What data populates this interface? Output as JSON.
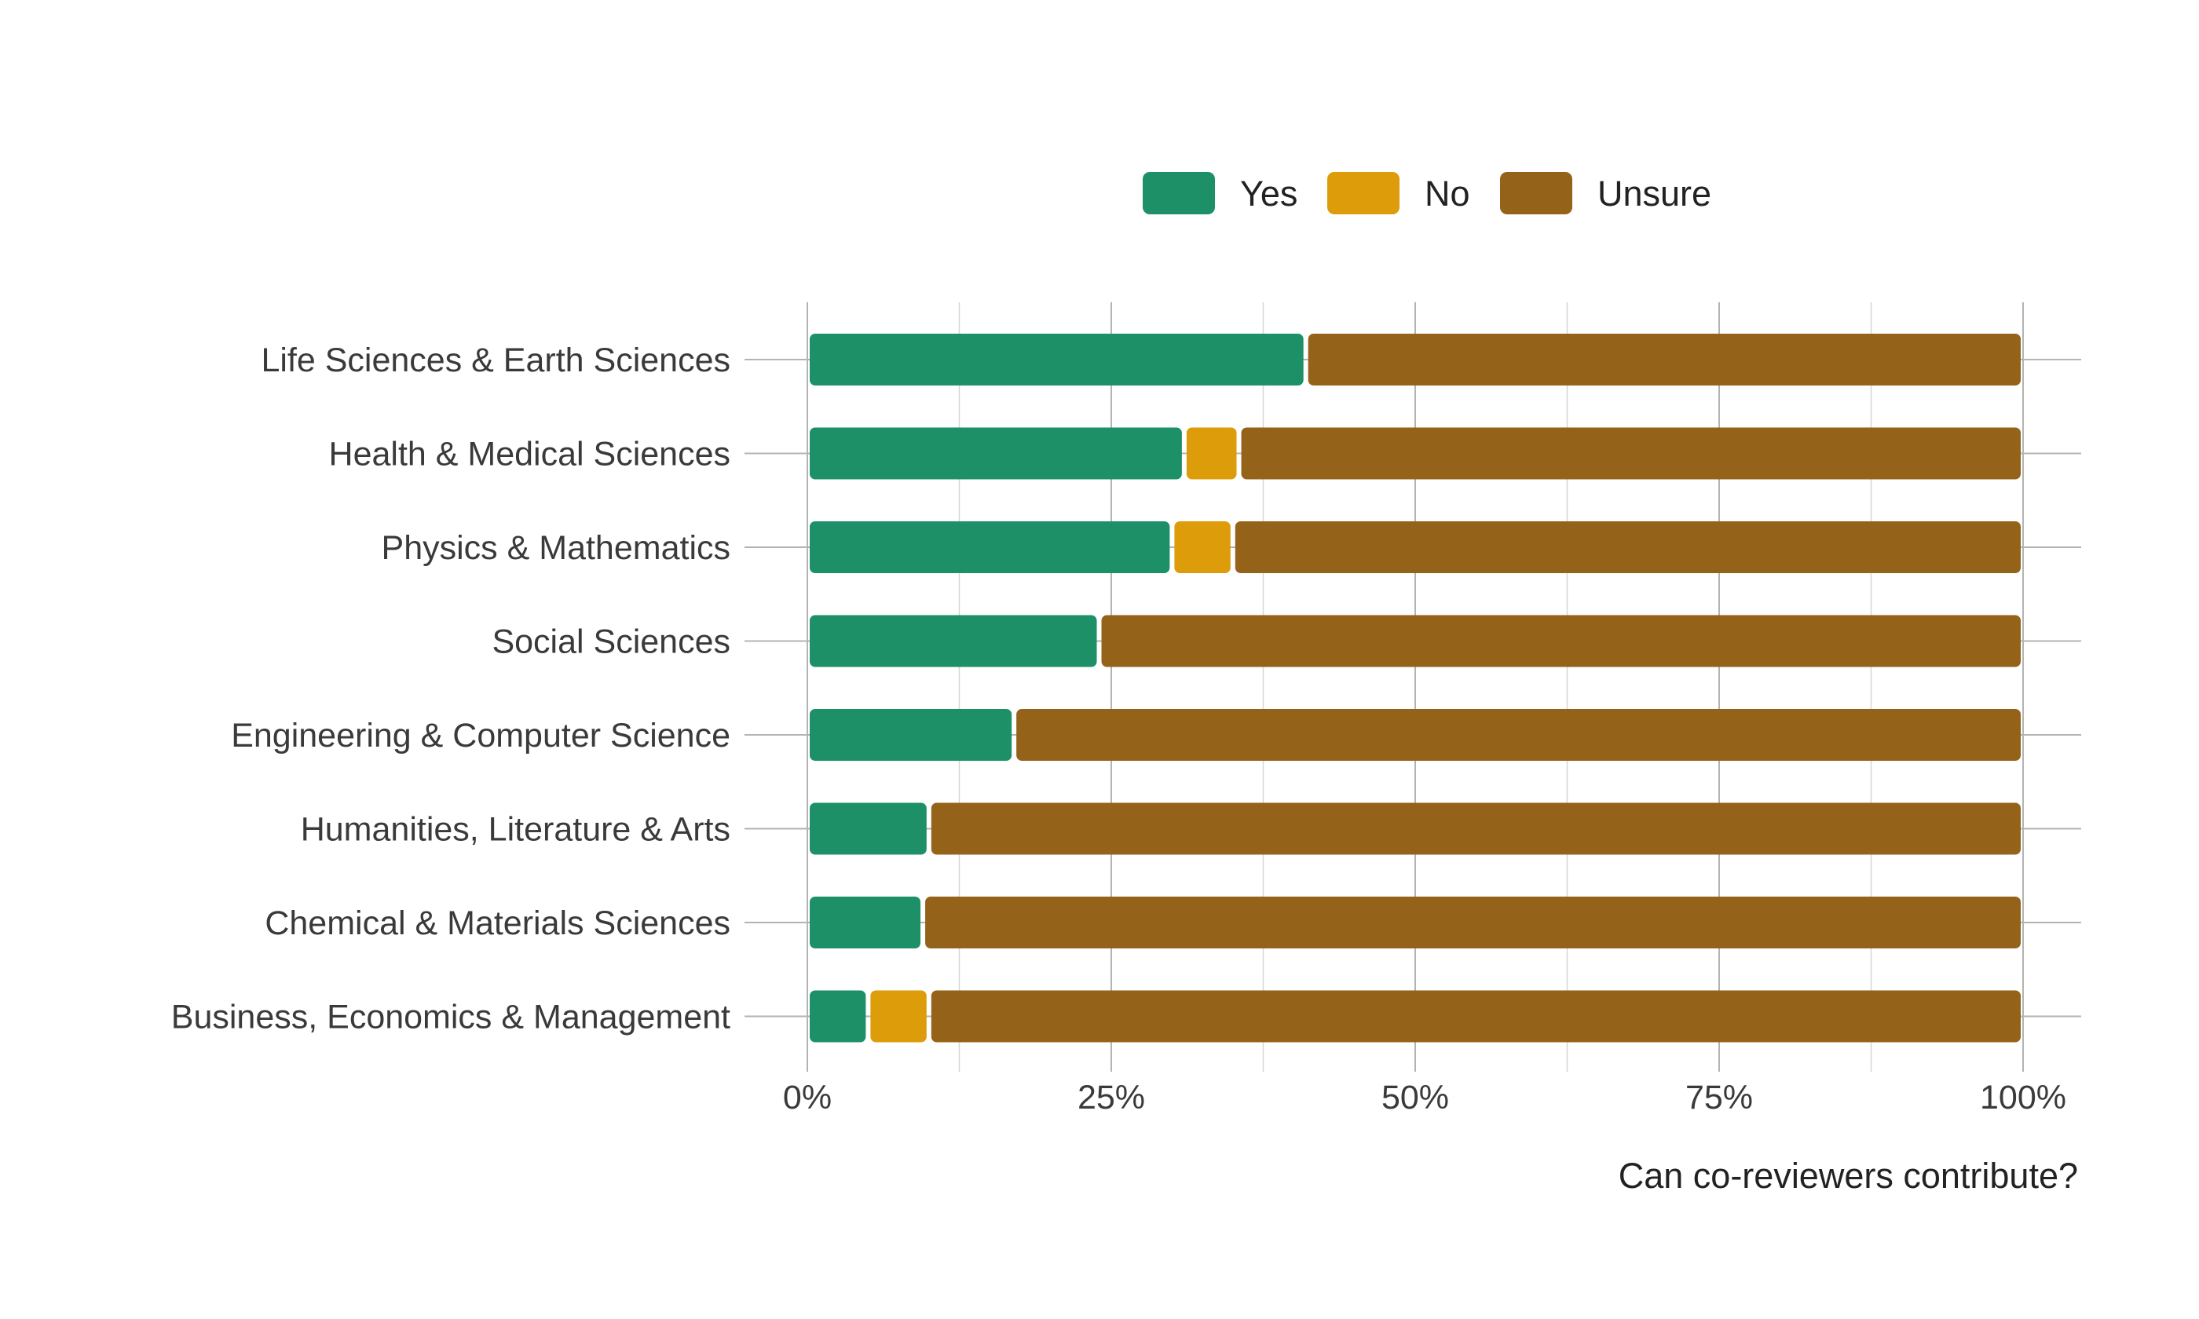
{
  "chart_data": {
    "type": "bar",
    "orientation": "horizontal",
    "stacked": true,
    "normalized": true,
    "categories": [
      "Life Sciences & Earth Sciences",
      "Health & Medical Sciences",
      "Physics & Mathematics",
      "Social Sciences",
      "Engineering & Computer Science",
      "Humanities, Literature & Arts",
      "Chemical & Materials Sciences",
      "Business, Economics & Management"
    ],
    "series": [
      {
        "name": "Yes",
        "color": "#1d9068",
        "values": [
          0.41,
          0.31,
          0.3,
          0.24,
          0.17,
          0.1,
          0.095,
          0.05
        ]
      },
      {
        "name": "No",
        "color": "#dd9c09",
        "values": [
          0.0,
          0.045,
          0.05,
          0.0,
          0.0,
          0.0,
          0.0,
          0.05
        ]
      },
      {
        "name": "Unsure",
        "color": "#956219",
        "values": [
          0.59,
          0.645,
          0.65,
          0.76,
          0.83,
          0.9,
          0.905,
          0.9
        ]
      }
    ],
    "x_ticks": [
      "0%",
      "25%",
      "50%",
      "75%",
      "100%"
    ],
    "x_tick_values": [
      0,
      0.25,
      0.5,
      0.75,
      1.0
    ],
    "xlabel": "Can co-reviewers contribute?",
    "ylabel": "",
    "title": "",
    "xlim": [
      0,
      1.0
    ],
    "grid": true,
    "legend_position": "top"
  }
}
